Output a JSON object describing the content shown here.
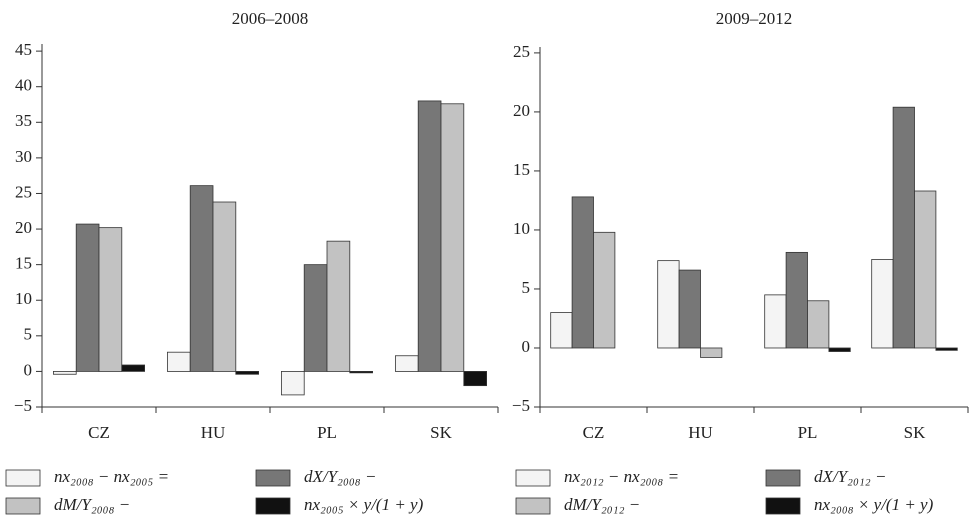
{
  "chart_data": [
    {
      "type": "bar",
      "title": "2006–2008",
      "categories": [
        "CZ",
        "HU",
        "PL",
        "SK"
      ],
      "series": [
        {
          "name": "nx₂₀₀₈ − nx₂₀₀₅ =",
          "color": "#f4f4f4",
          "values": [
            -0.4,
            2.7,
            -3.3,
            2.2
          ]
        },
        {
          "name": "dX/Y₂₀₀₈ −",
          "color": "#777777",
          "values": [
            20.7,
            26.1,
            15.0,
            38.0
          ]
        },
        {
          "name": "dM/Y₂₀₀₈ −",
          "color": "#c2c2c2",
          "values": [
            20.2,
            23.8,
            18.3,
            37.6
          ]
        },
        {
          "name": "nx₂₀₀₅ × y/(1 + y)",
          "color": "#111111",
          "values": [
            0.9,
            -0.4,
            -0.2,
            -2.0
          ]
        }
      ],
      "ylim": [
        -5,
        46
      ],
      "yticks": [
        {
          "value": -5,
          "label": "−5"
        },
        0,
        5,
        10,
        15,
        20,
        25,
        30,
        35,
        40,
        45
      ]
    },
    {
      "type": "bar",
      "title": "2009–2012",
      "categories": [
        "CZ",
        "HU",
        "PL",
        "SK"
      ],
      "series": [
        {
          "name": "nx₂₀₁₂ − nx₂₀₀₈ =",
          "color": "#f4f4f4",
          "values": [
            3.0,
            7.4,
            4.5,
            7.5
          ]
        },
        {
          "name": "dX/Y₂₀₁₂ −",
          "color": "#777777",
          "values": [
            12.8,
            6.6,
            8.1,
            20.4
          ]
        },
        {
          "name": "dM/Y₂₀₁₂ −",
          "color": "#c2c2c2",
          "values": [
            9.8,
            -0.8,
            4.0,
            13.3
          ]
        },
        {
          "name": "nx₂₀₀₈ × y/(1 + y)",
          "color": "#111111",
          "values": [
            0,
            0,
            -0.3,
            -0.2
          ]
        }
      ],
      "ylim": [
        -5,
        25.5
      ],
      "yticks": [
        {
          "value": -5,
          "label": "−5"
        },
        0,
        5,
        10,
        15,
        20,
        25
      ]
    }
  ]
}
